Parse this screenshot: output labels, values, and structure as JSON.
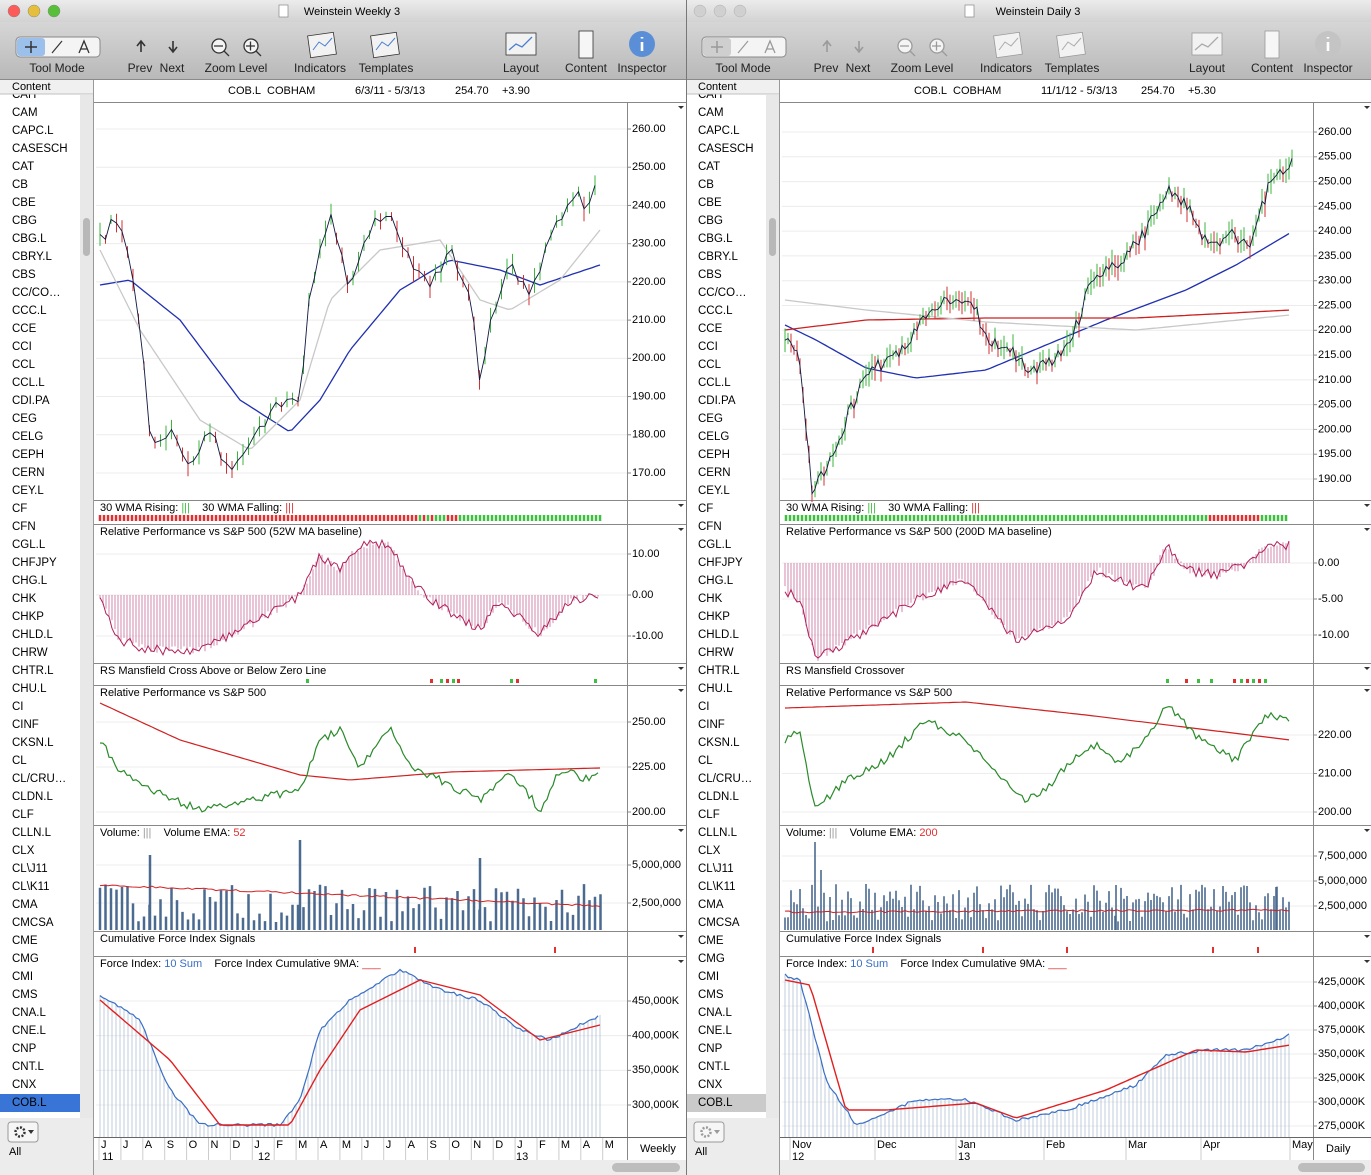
{
  "toolbar": {
    "tool_mode": "Tool Mode",
    "prev": "Prev",
    "next": "Next",
    "zoom": "Zoom Level",
    "indicators": "Indicators",
    "templates": "Templates",
    "layout": "Layout",
    "content": "Content",
    "inspector": "Inspector"
  },
  "content_header": "Content",
  "footer": "All",
  "sidebar_symbols": [
    "CAH",
    "CAM",
    "CAPC.L",
    "CASESCH",
    "CAT",
    "CB",
    "CBE",
    "CBG",
    "CBG.L",
    "CBRY.L",
    "CBS",
    "CC/CO…",
    "CCC.L",
    "CCE",
    "CCI",
    "CCL",
    "CCL.L",
    "CDI.PA",
    "CEG",
    "CELG",
    "CEPH",
    "CERN",
    "CEY.L",
    "CF",
    "CFN",
    "CGL.L",
    "CHFJPY",
    "CHG.L",
    "CHK",
    "CHKP",
    "CHLD.L",
    "CHRW",
    "CHTR.L",
    "CHU.L",
    "CI",
    "CINF",
    "CKSN.L",
    "CL",
    "CL/CRU…",
    "CLDN.L",
    "CLF",
    "CLLN.L",
    "CLX",
    "CL\\J11",
    "CL\\K11",
    "CMA",
    "CMCSA",
    "CME",
    "CMG",
    "CMI",
    "CMS",
    "CNA.L",
    "CNE.L",
    "CNP",
    "CNT.L",
    "CNX",
    "COB.L"
  ],
  "windows": [
    {
      "title": "Weinstein Weekly 3",
      "header": {
        "symbol": "COB.L",
        "name": "COBHAM",
        "range": "6/3/11 - 5/3/13",
        "price": "254.70",
        "change": "+3.90"
      },
      "panels": [
        {
          "ticks": [
            "260.00",
            "250.00",
            "240.00",
            "230.00",
            "220.00",
            "210.00",
            "200.00",
            "190.00",
            "180.00",
            "170.00"
          ]
        },
        {
          "label": [
            {
              "text": "30 WMA Rising: "
            },
            {
              "text": "|||",
              "color": "#3fbf3f"
            },
            {
              "text": "    30 WMA Falling: "
            },
            {
              "text": "|||",
              "color": "#e03030"
            }
          ]
        },
        {
          "label": [
            {
              "text": "Relative Performance vs S&P 500 (52W MA baseline)"
            }
          ],
          "ticks": [
            "10.00",
            "0.00",
            "-10.00"
          ]
        },
        {
          "label": [
            {
              "text": "RS Mansfield Cross Above or Below Zero Line"
            }
          ]
        },
        {
          "label": [
            {
              "text": "Relative Performance vs S&P 500"
            }
          ],
          "ticks": [
            "250.00",
            "225.00",
            "200.00"
          ]
        },
        {
          "label": [
            {
              "text": "Volume: "
            },
            {
              "text": "|||",
              "color": "#999999"
            },
            {
              "text": "    Volume EMA: "
            },
            {
              "text": "52",
              "color": "#e03030"
            }
          ],
          "ticks": [
            "5,000,000",
            "2,500,000"
          ]
        },
        {
          "label": [
            {
              "text": "Cumulative Force Index Signals"
            }
          ]
        },
        {
          "label": [
            {
              "text": "Force Index: "
            },
            {
              "text": "10 Sum",
              "color": "#3a6fc4"
            },
            {
              "text": "    Force Index Cumulative 9MA: "
            },
            {
              "text": "___",
              "color": "#e03030"
            }
          ],
          "ticks": [
            "450,000K",
            "400,000K",
            "350,000K",
            "300,000K"
          ]
        }
      ],
      "x_axis": {
        "months": [
          "J",
          "J",
          "A",
          "S",
          "O",
          "N",
          "D",
          "J",
          "F",
          "M",
          "A",
          "M",
          "J",
          "J",
          "A",
          "S",
          "O",
          "N",
          "D",
          "J",
          "F",
          "M",
          "A",
          "M"
        ],
        "years": [
          "11",
          "12",
          "13"
        ],
        "period": "Weekly"
      }
    },
    {
      "title": "Weinstein Daily 3",
      "header": {
        "symbol": "COB.L",
        "name": "COBHAM",
        "range": "11/1/12 - 5/3/13",
        "price": "254.70",
        "change": "+5.30"
      },
      "panels": [
        {
          "ticks": [
            "260.00",
            "255.00",
            "250.00",
            "245.00",
            "240.00",
            "235.00",
            "230.00",
            "225.00",
            "220.00",
            "215.00",
            "210.00",
            "205.00",
            "200.00",
            "195.00",
            "190.00"
          ]
        },
        {
          "label": [
            {
              "text": "30 WMA Rising: "
            },
            {
              "text": "|||",
              "color": "#3fbf3f"
            },
            {
              "text": "    30 WMA Falling: "
            },
            {
              "text": "|||",
              "color": "#e03030"
            }
          ]
        },
        {
          "label": [
            {
              "text": "Relative Performance vs S&P 500 (200D MA baseline)"
            }
          ],
          "ticks": [
            "0.00",
            "-5.00",
            "-10.00"
          ]
        },
        {
          "label": [
            {
              "text": "RS Mansfield Crossover"
            }
          ]
        },
        {
          "label": [
            {
              "text": "Relative Performance vs S&P 500"
            }
          ],
          "ticks": [
            "220.00",
            "210.00",
            "200.00"
          ]
        },
        {
          "label": [
            {
              "text": "Volume: "
            },
            {
              "text": "|||",
              "color": "#999999"
            },
            {
              "text": "    Volume EMA: "
            },
            {
              "text": "200",
              "color": "#e03030"
            }
          ],
          "ticks": [
            "7,500,000",
            "5,000,000",
            "2,500,000"
          ]
        },
        {
          "label": [
            {
              "text": "Cumulative Force Index Signals"
            }
          ]
        },
        {
          "label": [
            {
              "text": "Force Index: "
            },
            {
              "text": "10 Sum",
              "color": "#3a6fc4"
            },
            {
              "text": "    Force Index Cumulative 9MA: "
            },
            {
              "text": "___",
              "color": "#e03030"
            }
          ],
          "ticks": [
            "425,000K",
            "400,000K",
            "375,000K",
            "350,000K",
            "325,000K",
            "300,000K",
            "275,000K"
          ]
        }
      ],
      "x_axis": {
        "months": [
          "Nov",
          "Dec",
          "Jan",
          "Feb",
          "Mar",
          "Apr",
          "May"
        ],
        "years": [
          "12",
          "13"
        ],
        "period": "Daily"
      }
    }
  ]
}
